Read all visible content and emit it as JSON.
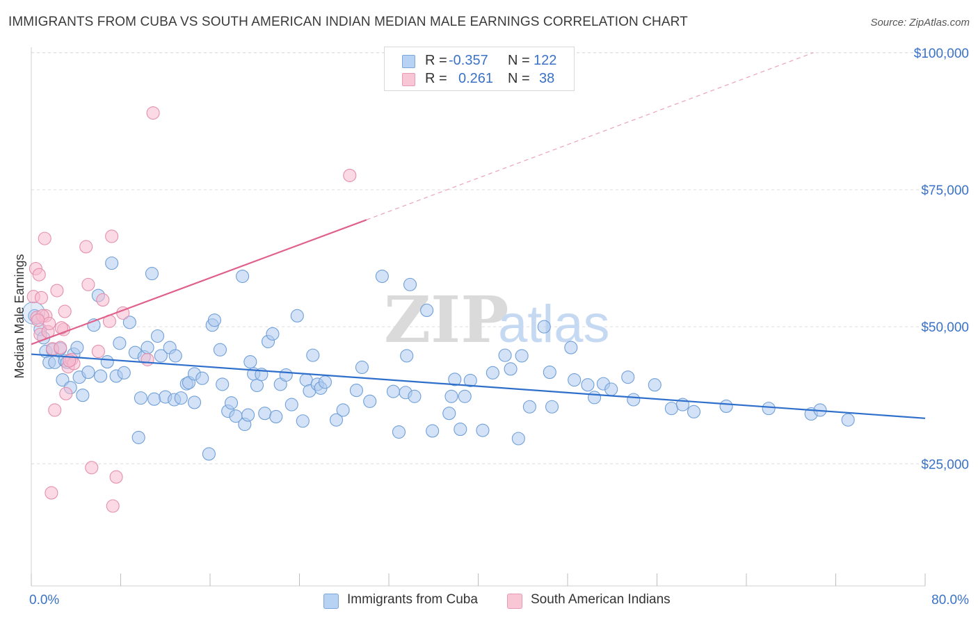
{
  "title": "IMMIGRANTS FROM CUBA VS SOUTH AMERICAN INDIAN MEDIAN MALE EARNINGS CORRELATION CHART",
  "source": "Source: ZipAtlas.com",
  "watermark": {
    "zip": "ZIP",
    "atlas": "atlas"
  },
  "legend": {
    "rows": [
      {
        "r_label": "R =",
        "r_value": "-0.357",
        "n_label": "N =",
        "n_value": "122"
      },
      {
        "r_label": "R =",
        "r_value": "0.261",
        "n_label": "N =",
        "n_value": "38"
      }
    ]
  },
  "colors": {
    "blue_fill": "#aecbef",
    "blue_stroke": "#6f9fd8",
    "blue_line": "#2f6fcc",
    "pink_fill": "#f7bcd0",
    "pink_stroke": "#e48fae",
    "pink_line": "#e0608a",
    "grid": "#dcdcdc",
    "tick_label": "#3a72c8"
  },
  "chart_data": {
    "type": "scatter",
    "title": "IMMIGRANTS FROM CUBA VS SOUTH AMERICAN INDIAN MEDIAN MALE EARNINGS CORRELATION CHART",
    "xlabel": "",
    "ylabel": "Median Male Earnings",
    "xlim": [
      0,
      80
    ],
    "ylim": [
      5000,
      102000
    ],
    "x_tick_labels": [
      "0.0%",
      "80.0%"
    ],
    "y_ticks": [
      25000,
      50000,
      75000,
      100000
    ],
    "y_tick_labels": [
      "$25,000",
      "$50,000",
      "$75,000",
      "$100,000"
    ],
    "grid": "horizontal dashed",
    "legend_position": "top-center",
    "series": [
      {
        "name": "Immigrants from Cuba",
        "color": "#aecbef",
        "trend": {
          "x": [
            0,
            80
          ],
          "y": [
            45000,
            33300
          ]
        },
        "points": [
          [
            0.3,
            52000
          ],
          [
            0.8,
            49500
          ],
          [
            1.1,
            48000
          ],
          [
            1.3,
            45500
          ],
          [
            1.6,
            43500
          ],
          [
            1.9,
            45800
          ],
          [
            2.1,
            43500
          ],
          [
            2.6,
            46000
          ],
          [
            2.8,
            40300
          ],
          [
            3.0,
            43800
          ],
          [
            3.2,
            43500
          ],
          [
            3.5,
            38900
          ],
          [
            3.8,
            45000
          ],
          [
            4.1,
            46200
          ],
          [
            4.3,
            40800
          ],
          [
            4.6,
            37500
          ],
          [
            5.1,
            41700
          ],
          [
            5.6,
            50300
          ],
          [
            6.0,
            55700
          ],
          [
            6.2,
            41000
          ],
          [
            6.8,
            43600
          ],
          [
            7.2,
            61600
          ],
          [
            7.6,
            41000
          ],
          [
            7.9,
            47000
          ],
          [
            8.3,
            41600
          ],
          [
            8.8,
            50800
          ],
          [
            9.3,
            45300
          ],
          [
            9.6,
            29800
          ],
          [
            9.8,
            37000
          ],
          [
            10.1,
            44500
          ],
          [
            10.4,
            46200
          ],
          [
            10.8,
            59700
          ],
          [
            11.0,
            36800
          ],
          [
            11.3,
            48300
          ],
          [
            11.6,
            44700
          ],
          [
            12.0,
            37200
          ],
          [
            12.4,
            46200
          ],
          [
            12.8,
            36700
          ],
          [
            12.9,
            44700
          ],
          [
            13.4,
            37000
          ],
          [
            13.9,
            39600
          ],
          [
            14.1,
            39800
          ],
          [
            14.6,
            41400
          ],
          [
            14.6,
            36200
          ],
          [
            15.3,
            40600
          ],
          [
            15.9,
            26800
          ],
          [
            16.2,
            50300
          ],
          [
            16.4,
            51200
          ],
          [
            16.9,
            45800
          ],
          [
            17.1,
            39500
          ],
          [
            17.6,
            34600
          ],
          [
            17.9,
            36100
          ],
          [
            18.3,
            33700
          ],
          [
            18.9,
            59200
          ],
          [
            19.1,
            32200
          ],
          [
            19.4,
            33900
          ],
          [
            19.6,
            43600
          ],
          [
            19.9,
            41400
          ],
          [
            20.2,
            39300
          ],
          [
            20.6,
            41300
          ],
          [
            20.9,
            34200
          ],
          [
            21.2,
            47300
          ],
          [
            21.6,
            48700
          ],
          [
            21.9,
            33600
          ],
          [
            22.3,
            39500
          ],
          [
            22.8,
            41200
          ],
          [
            23.3,
            35800
          ],
          [
            23.8,
            52000
          ],
          [
            24.3,
            32800
          ],
          [
            24.6,
            40300
          ],
          [
            24.9,
            38300
          ],
          [
            25.2,
            44800
          ],
          [
            25.6,
            39500
          ],
          [
            25.9,
            38800
          ],
          [
            26.3,
            39900
          ],
          [
            27.3,
            33000
          ],
          [
            27.9,
            34800
          ],
          [
            29.1,
            38400
          ],
          [
            29.6,
            42600
          ],
          [
            30.3,
            36400
          ],
          [
            31.4,
            59200
          ],
          [
            32.4,
            38200
          ],
          [
            32.9,
            30800
          ],
          [
            33.5,
            38000
          ],
          [
            33.6,
            44700
          ],
          [
            33.9,
            57700
          ],
          [
            34.3,
            37300
          ],
          [
            35.4,
            53000
          ],
          [
            35.9,
            31000
          ],
          [
            37.4,
            34200
          ],
          [
            37.6,
            37300
          ],
          [
            37.9,
            40400
          ],
          [
            38.4,
            31300
          ],
          [
            38.8,
            37300
          ],
          [
            39.3,
            40200
          ],
          [
            40.4,
            31100
          ],
          [
            41.3,
            41600
          ],
          [
            42.4,
            44800
          ],
          [
            42.9,
            42300
          ],
          [
            43.6,
            29600
          ],
          [
            43.9,
            44700
          ],
          [
            44.6,
            35400
          ],
          [
            45.9,
            50000
          ],
          [
            46.4,
            41700
          ],
          [
            46.6,
            35400
          ],
          [
            48.3,
            46200
          ],
          [
            48.6,
            40300
          ],
          [
            49.8,
            39400
          ],
          [
            50.4,
            37100
          ],
          [
            51.2,
            39600
          ],
          [
            51.9,
            38600
          ],
          [
            53.4,
            40800
          ],
          [
            53.9,
            36700
          ],
          [
            55.8,
            39400
          ],
          [
            57.3,
            35100
          ],
          [
            58.3,
            35800
          ],
          [
            59.3,
            34500
          ],
          [
            62.2,
            35500
          ],
          [
            66.0,
            35100
          ],
          [
            69.8,
            34100
          ],
          [
            70.6,
            34800
          ],
          [
            73.1,
            33000
          ]
        ]
      },
      {
        "name": "South American Indians",
        "color": "#f7bcd0",
        "trend": {
          "x": [
            0,
            30
          ],
          "y": [
            46800,
            69500
          ]
        },
        "trend_dashed": {
          "x": [
            30,
            70
          ],
          "y": [
            69500,
            100000
          ]
        },
        "points": [
          [
            0.2,
            55500
          ],
          [
            0.4,
            60600
          ],
          [
            0.5,
            51700
          ],
          [
            0.7,
            59500
          ],
          [
            0.8,
            48600
          ],
          [
            0.9,
            55300
          ],
          [
            1.2,
            66100
          ],
          [
            1.3,
            52000
          ],
          [
            1.5,
            49100
          ],
          [
            1.8,
            19700
          ],
          [
            1.9,
            46000
          ],
          [
            2.1,
            34800
          ],
          [
            2.3,
            56600
          ],
          [
            2.6,
            46200
          ],
          [
            2.9,
            49500
          ],
          [
            3.0,
            52800
          ],
          [
            3.1,
            37800
          ],
          [
            3.3,
            42700
          ],
          [
            3.6,
            44000
          ],
          [
            3.8,
            43300
          ],
          [
            4.9,
            64600
          ],
          [
            5.1,
            57700
          ],
          [
            5.4,
            24300
          ],
          [
            6.0,
            45500
          ],
          [
            6.4,
            54900
          ],
          [
            7.0,
            51000
          ],
          [
            7.2,
            66500
          ],
          [
            7.3,
            17300
          ],
          [
            7.6,
            22600
          ],
          [
            8.2,
            52500
          ],
          [
            10.4,
            44000
          ],
          [
            10.9,
            89000
          ],
          [
            28.5,
            77600
          ],
          [
            1.0,
            52000
          ],
          [
            1.6,
            50600
          ],
          [
            2.7,
            49800
          ],
          [
            3.4,
            43800
          ],
          [
            0.6,
            51200
          ]
        ]
      }
    ]
  },
  "bottom_legend": [
    {
      "label": "Immigrants from Cuba"
    },
    {
      "label": "South American Indians"
    }
  ]
}
